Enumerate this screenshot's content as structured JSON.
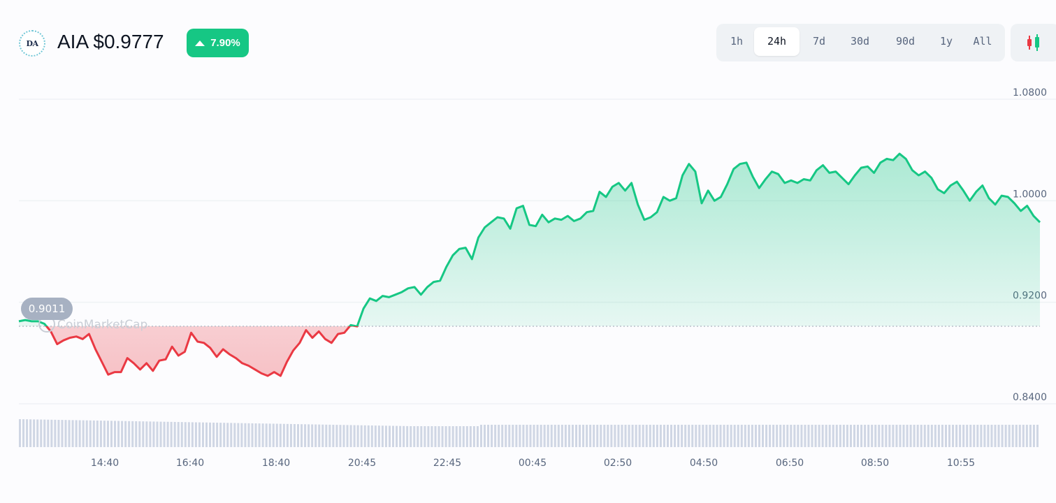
{
  "header": {
    "logo_text": "DA",
    "title": "AIA $0.9777",
    "change": "7.90%",
    "change_color": "#16c784"
  },
  "ranges": [
    "1h",
    "24h",
    "7d",
    "30d",
    "90d",
    "1y",
    "All"
  ],
  "active_range": "24h",
  "toggle_icon": "candlestick-icon",
  "watermark": "CoinMarketCap",
  "colors": {
    "up": "#16c784",
    "down": "#ea3943",
    "grid": "#eff2f5",
    "volume": "#cfd6e4"
  },
  "chart_data": {
    "type": "area",
    "reference_price": 0.9011,
    "reference_label": "0.9011",
    "y_ticks": [
      "1.0800",
      "1.0000",
      "0.9200",
      "0.8400"
    ],
    "x_ticks": [
      "14:40",
      "16:40",
      "18:40",
      "20:45",
      "22:45",
      "00:45",
      "02:50",
      "04:50",
      "06:50",
      "08:50",
      "10:55"
    ],
    "ylim": [
      0.84,
      1.08
    ],
    "price": [
      0.905,
      0.906,
      0.905,
      0.905,
      0.903,
      0.897,
      0.887,
      0.89,
      0.892,
      0.893,
      0.891,
      0.895,
      0.883,
      0.873,
      0.863,
      0.865,
      0.865,
      0.876,
      0.872,
      0.867,
      0.872,
      0.866,
      0.874,
      0.875,
      0.885,
      0.878,
      0.881,
      0.896,
      0.889,
      0.888,
      0.884,
      0.877,
      0.883,
      0.879,
      0.876,
      0.872,
      0.87,
      0.867,
      0.864,
      0.862,
      0.865,
      0.862,
      0.873,
      0.882,
      0.888,
      0.898,
      0.892,
      0.897,
      0.891,
      0.888,
      0.895,
      0.896,
      0.902,
      0.901,
      0.915,
      0.923,
      0.921,
      0.925,
      0.924,
      0.926,
      0.928,
      0.931,
      0.932,
      0.926,
      0.932,
      0.936,
      0.937,
      0.948,
      0.957,
      0.962,
      0.963,
      0.954,
      0.971,
      0.979,
      0.983,
      0.987,
      0.986,
      0.978,
      0.994,
      0.996,
      0.981,
      0.98,
      0.989,
      0.983,
      0.986,
      0.985,
      0.988,
      0.984,
      0.986,
      0.991,
      0.992,
      1.007,
      1.003,
      1.011,
      1.014,
      1.008,
      1.014,
      0.997,
      0.985,
      0.987,
      0.991,
      1.003,
      1.0,
      1.002,
      1.02,
      1.029,
      1.023,
      0.998,
      1.008,
      1.0,
      1.003,
      1.013,
      1.025,
      1.029,
      1.03,
      1.019,
      1.01,
      1.017,
      1.023,
      1.021,
      1.014,
      1.016,
      1.014,
      1.017,
      1.016,
      1.024,
      1.028,
      1.022,
      1.023,
      1.018,
      1.013,
      1.02,
      1.026,
      1.027,
      1.022,
      1.03,
      1.033,
      1.032,
      1.037,
      1.033,
      1.024,
      1.02,
      1.023,
      1.018,
      1.009,
      1.006,
      1.012,
      1.015,
      1.008,
      1.0,
      1.007,
      1.012,
      1.002,
      0.997,
      1.004,
      1.003,
      0.998,
      0.992,
      0.996,
      0.988,
      0.983
    ]
  }
}
